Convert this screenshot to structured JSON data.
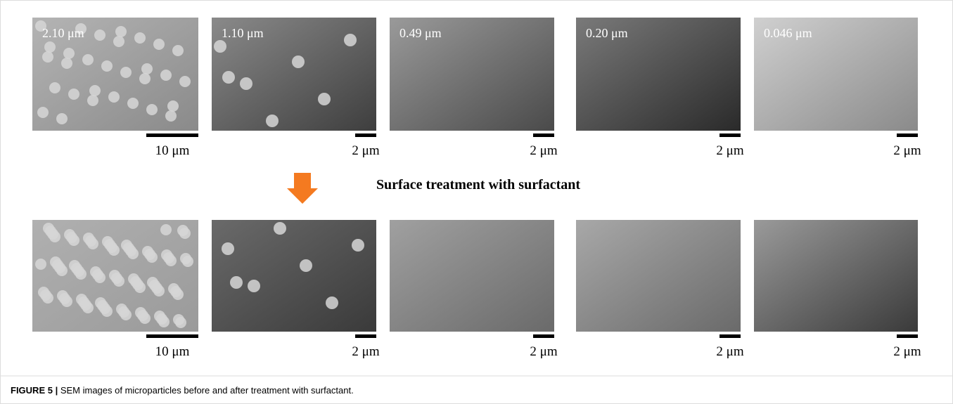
{
  "figure": {
    "rows": [
      {
        "panels": [
          {
            "label": "2.10 μm",
            "scale": "10 μm"
          },
          {
            "label": "1.10 μm",
            "scale": "2 μm"
          },
          {
            "label": "0.49 μm",
            "scale": "2 μm"
          },
          {
            "label": "0.20 μm",
            "scale": "2 μm"
          },
          {
            "label": "0.046 μm",
            "scale": "2 μm"
          }
        ]
      },
      {
        "panels": [
          {
            "scale": "10 μm"
          },
          {
            "scale": "2 μm"
          },
          {
            "scale": "2 μm"
          },
          {
            "scale": "2 μm"
          },
          {
            "scale": "2 μm"
          }
        ]
      }
    ],
    "treatment": "Surface treatment with surfactant",
    "caption": {
      "label": "FIGURE 5 |",
      "text": "SEM images of microparticles before and after treatment with surfactant."
    }
  }
}
